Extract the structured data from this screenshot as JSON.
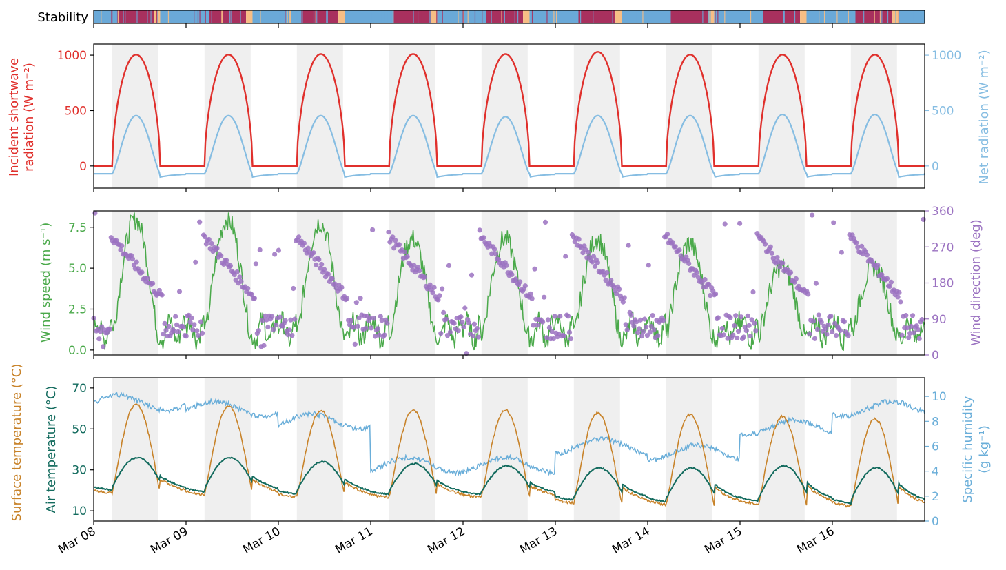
{
  "colors": {
    "shortwave": "#e0302c",
    "net_radiation": "#86bde2",
    "wind_speed": "#4aa94a",
    "wind_direction": "#9b72c1",
    "surface_temperature": "#c8832a",
    "air_temperature": "#136b5e",
    "specific_humidity": "#6aaed9",
    "night_shading": "#efefef",
    "stability_stable": "#a8305e",
    "stability_unstable": "#6aa9d8",
    "stability_neutral": "#f7be85"
  },
  "stability_bar": {
    "label": "Stability",
    "segments": [
      {
        "start": 0.0,
        "end": 0.25,
        "class": "unstable"
      },
      {
        "start": 0.25,
        "end": 0.65,
        "class": "stable"
      },
      {
        "start": 0.65,
        "end": 0.72,
        "class": "neutral"
      },
      {
        "start": 0.72,
        "end": 1.25,
        "class": "unstable"
      },
      {
        "start": 1.25,
        "end": 1.65,
        "class": "stable"
      },
      {
        "start": 1.65,
        "end": 1.72,
        "class": "neutral"
      },
      {
        "start": 1.72,
        "end": 2.25,
        "class": "unstable"
      },
      {
        "start": 2.25,
        "end": 2.65,
        "class": "stable"
      },
      {
        "start": 2.65,
        "end": 2.72,
        "class": "neutral"
      },
      {
        "start": 2.72,
        "end": 3.25,
        "class": "unstable"
      },
      {
        "start": 3.25,
        "end": 3.65,
        "class": "stable"
      },
      {
        "start": 3.65,
        "end": 3.72,
        "class": "neutral"
      },
      {
        "start": 3.72,
        "end": 4.25,
        "class": "unstable"
      },
      {
        "start": 4.25,
        "end": 4.65,
        "class": "stable"
      },
      {
        "start": 4.65,
        "end": 4.72,
        "class": "neutral"
      },
      {
        "start": 4.72,
        "end": 5.25,
        "class": "unstable"
      },
      {
        "start": 5.25,
        "end": 5.65,
        "class": "stable"
      },
      {
        "start": 5.65,
        "end": 5.72,
        "class": "neutral"
      },
      {
        "start": 5.72,
        "end": 6.25,
        "class": "unstable"
      },
      {
        "start": 6.25,
        "end": 6.65,
        "class": "stable"
      },
      {
        "start": 6.65,
        "end": 6.72,
        "class": "neutral"
      },
      {
        "start": 6.72,
        "end": 7.25,
        "class": "unstable"
      },
      {
        "start": 7.25,
        "end": 7.65,
        "class": "stable"
      },
      {
        "start": 7.65,
        "end": 7.72,
        "class": "neutral"
      },
      {
        "start": 7.72,
        "end": 8.25,
        "class": "unstable"
      },
      {
        "start": 8.25,
        "end": 8.65,
        "class": "stable"
      },
      {
        "start": 8.65,
        "end": 8.72,
        "class": "neutral"
      },
      {
        "start": 8.72,
        "end": 9.0,
        "class": "unstable"
      }
    ]
  },
  "chart_data": [
    {
      "type": "line",
      "panel": "radiation",
      "x_dates": [
        "Mar 08",
        "Mar 09",
        "Mar 10",
        "Mar 11",
        "Mar 12",
        "Mar 13",
        "Mar 14",
        "Mar 15",
        "Mar 16"
      ],
      "night_shading": [
        [
          0.2,
          0.7
        ],
        [
          1.2,
          1.7
        ],
        [
          2.2,
          2.7
        ],
        [
          3.2,
          3.7
        ],
        [
          4.2,
          4.7
        ],
        [
          5.2,
          5.7
        ],
        [
          6.2,
          6.7
        ],
        [
          7.2,
          7.7
        ],
        [
          8.2,
          8.7
        ]
      ],
      "ylabel_left": [
        "Incident shortwave",
        "radiation (W m⁻²)"
      ],
      "ylabel_right": "Net radiation (W m⁻²)",
      "ylim": [
        -200,
        1100
      ],
      "yticks": [
        0,
        500,
        1000
      ],
      "daily_peak_shortwave": [
        1005,
        1005,
        1010,
        1010,
        1010,
        1030,
        1005,
        1005,
        1005
      ],
      "daily_peak_net": [
        455,
        455,
        455,
        455,
        445,
        455,
        455,
        465,
        465
      ],
      "night_net": -70
    },
    {
      "type": "line+scatter",
      "panel": "wind",
      "ylabel_left": "Wind speed (m s⁻¹)",
      "ylabel_right": "Wind direction (deg)",
      "ylim_left": [
        -0.3,
        8.5
      ],
      "yticks_left": [
        "0.0",
        "2.5",
        "5.0",
        "7.5"
      ],
      "ylim_right": [
        0,
        360
      ],
      "yticks_right": [
        "0",
        "90",
        "180",
        "270",
        "360"
      ],
      "daily_peak_wind_speed": [
        8.0,
        8.0,
        7.8,
        6.8,
        6.8,
        6.8,
        6.5,
        5.1,
        5.1
      ],
      "wind_direction_daytime_start": 300,
      "wind_direction_daytime_end": 140
    },
    {
      "type": "line",
      "panel": "temperature",
      "ylabel_left_1": "Surface temperature (°C)",
      "ylabel_left_2": "Air temperature (°C)",
      "ylabel_right": [
        "Specific humidity",
        "(g kg⁻¹)"
      ],
      "ylim_left": [
        5,
        75
      ],
      "yticks_left": [
        "10",
        "30",
        "50",
        "70"
      ],
      "ylim_right": [
        0,
        11.5
      ],
      "yticks_right": [
        "0",
        "2",
        "4",
        "6",
        "8",
        "10"
      ],
      "daily_peak_surface_temperature": [
        62,
        61,
        59,
        59,
        59,
        58,
        57,
        56,
        55
      ],
      "daily_peak_air_temperature": [
        36,
        36,
        34,
        33,
        32,
        31,
        31,
        32,
        31
      ],
      "daily_min_air_temperature": [
        19,
        18,
        17,
        17,
        17,
        14,
        13,
        13,
        12
      ],
      "specific_humidity_daily": [
        9.5,
        9.0,
        8.0,
        4.5,
        4.5,
        6.0,
        5.5,
        7.5,
        9.0
      ]
    }
  ]
}
